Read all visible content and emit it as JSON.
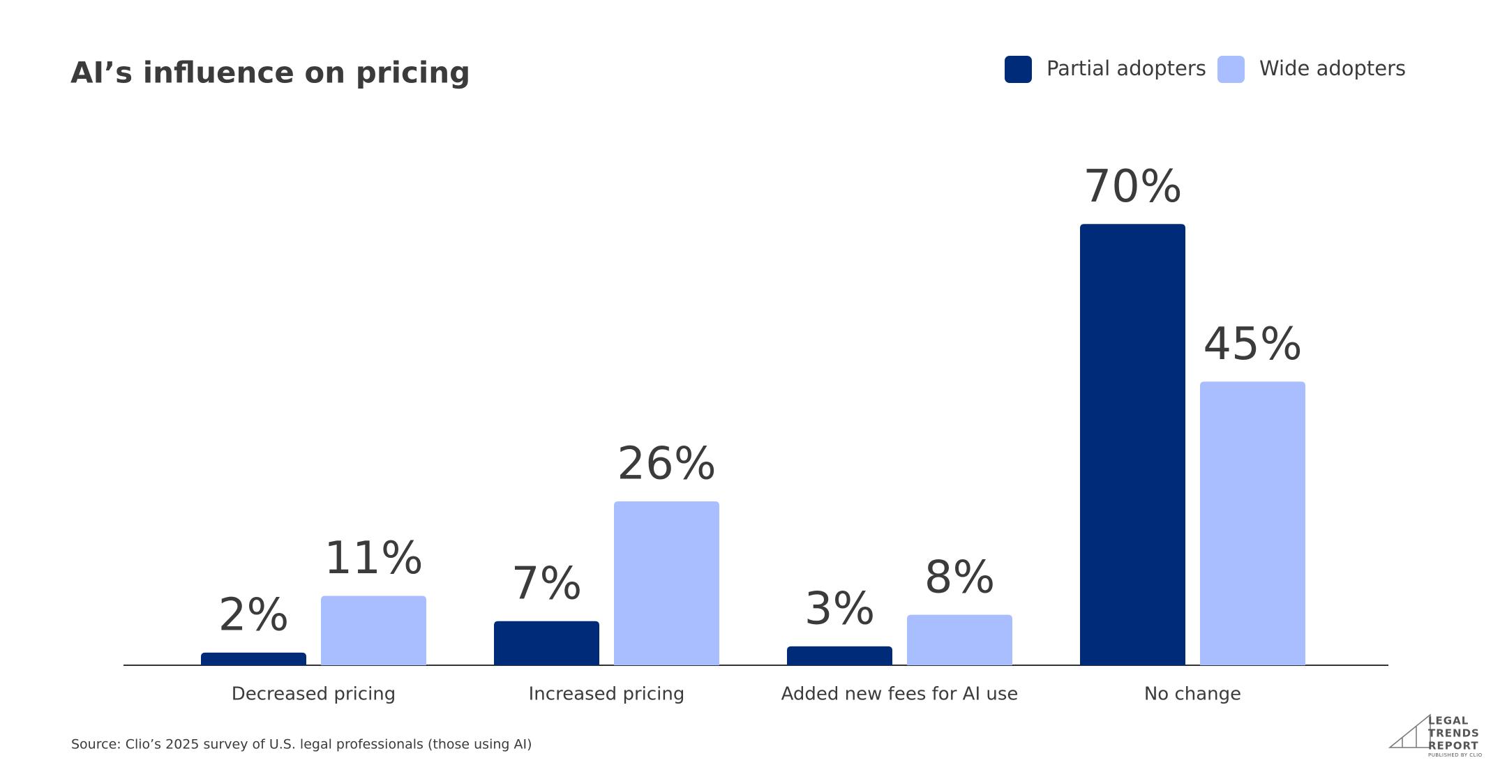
{
  "chart_data": {
    "type": "bar",
    "title": "AI’s influence on pricing",
    "categories": [
      "Decreased pricing",
      "Increased pricing",
      "Added new fees for AI use",
      "No change"
    ],
    "series": [
      {
        "name": "Partial adopters",
        "color": "#002b78",
        "values": [
          2,
          7,
          3,
          70
        ],
        "value_labels": [
          "2%",
          "7%",
          "3%",
          "70%"
        ]
      },
      {
        "name": "Wide adopters",
        "color": "#a8befe",
        "values": [
          11,
          26,
          8,
          45
        ],
        "value_labels": [
          "11%",
          "26%",
          "8%",
          "45%"
        ]
      }
    ],
    "legend": "top-right",
    "source": "Source: Clio’s 2025 survey of U.S. legal professionals (those using AI)",
    "logo": [
      "LEGAL",
      "TRENDS",
      "REPORT",
      "PUBLISHED BY CLIO"
    ]
  }
}
